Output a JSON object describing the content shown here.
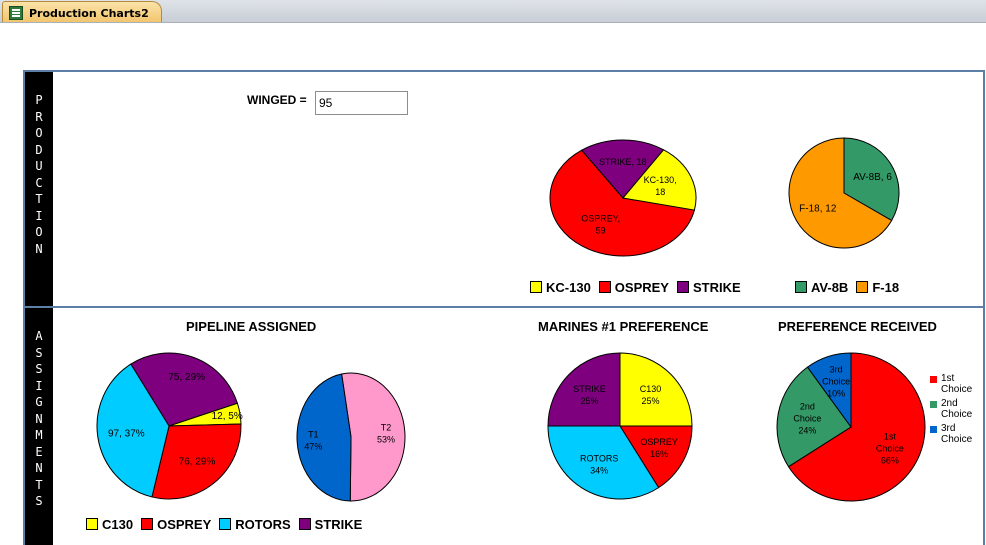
{
  "tab": {
    "title": "Production Charts2",
    "icon": "form-icon"
  },
  "production": {
    "band_label": "PRODUCTION",
    "winged_label": "WINGED =",
    "winged_value": "95"
  },
  "assignments": {
    "band_label": "ASSIGNMENTS",
    "pipeline_title": "PIPELINE ASSIGNED",
    "preference_title": "MARINES #1 PREFERENCE",
    "received_title": "PREFERENCE RECEIVED"
  },
  "legends": {
    "production_a": [
      {
        "label": "KC-130",
        "color": "#ffff00"
      },
      {
        "label": "OSPREY",
        "color": "#ff0000"
      },
      {
        "label": "STRIKE",
        "color": "#7f007f"
      }
    ],
    "production_b": [
      {
        "label": "AV-8B",
        "color": "#339966"
      },
      {
        "label": "F-18",
        "color": "#ff9900"
      }
    ],
    "pipeline": [
      {
        "label": "C130",
        "color": "#ffff00"
      },
      {
        "label": "OSPREY",
        "color": "#ff0000"
      },
      {
        "label": "ROTORS",
        "color": "#00ccff"
      },
      {
        "label": "STRIKE",
        "color": "#7f007f"
      }
    ],
    "received": [
      {
        "label": "1st Choice",
        "color": "#ff0000"
      },
      {
        "label": "2nd Choice",
        "color": "#339966"
      },
      {
        "label": "3rd Choice",
        "color": "#0066cc"
      }
    ]
  },
  "chart_data": [
    {
      "id": "production-main",
      "type": "pie",
      "start": "osprey-left",
      "slices": [
        {
          "name": "OSPREY",
          "value": 59,
          "label": [
            "OSPREY,",
            "59"
          ],
          "color": "#ff0000"
        },
        {
          "name": "STRIKE",
          "value": 18,
          "label": [
            "STRIKE, 18"
          ],
          "color": "#7f007f"
        },
        {
          "name": "KC-130",
          "value": 18,
          "label": [
            "KC-130,",
            "18"
          ],
          "color": "#ffff00"
        }
      ]
    },
    {
      "id": "production-ab",
      "type": "pie",
      "slices": [
        {
          "name": "AV-8B",
          "value": 6,
          "label": [
            "AV-8B, 6"
          ],
          "color": "#339966"
        },
        {
          "name": "F-18",
          "value": 12,
          "label": [
            "F-18, 12"
          ],
          "color": "#ff9900"
        }
      ]
    },
    {
      "id": "pipeline-assigned",
      "type": "pie",
      "slices": [
        {
          "name": "STRIKE",
          "value": 75,
          "label": [
            "75, 29%"
          ],
          "color": "#7f007f"
        },
        {
          "name": "C130",
          "value": 12,
          "label": [
            "12, 5%"
          ],
          "color": "#ffff00"
        },
        {
          "name": "OSPREY",
          "value": 76,
          "label": [
            "76, 29%"
          ],
          "color": "#ff0000"
        },
        {
          "name": "ROTORS",
          "value": 97,
          "label": [
            "97, 37%"
          ],
          "color": "#00ccff"
        }
      ]
    },
    {
      "id": "pipeline-t",
      "type": "pie",
      "slices": [
        {
          "name": "T2",
          "value": 53,
          "label": [
            "T2",
            "53%"
          ],
          "color": "#ff99cc"
        },
        {
          "name": "T1",
          "value": 47,
          "label": [
            "T1",
            "47%"
          ],
          "color": "#0066cc"
        }
      ]
    },
    {
      "id": "marines-preference",
      "type": "pie",
      "slices": [
        {
          "name": "C130",
          "value": 25,
          "label": [
            "C130",
            "25%"
          ],
          "color": "#ffff00"
        },
        {
          "name": "OSPREY",
          "value": 16,
          "label": [
            "OSPREY",
            "16%"
          ],
          "color": "#ff0000"
        },
        {
          "name": "ROTORS",
          "value": 34,
          "label": [
            "ROTORS",
            "34%"
          ],
          "color": "#00ccff"
        },
        {
          "name": "STRIKE",
          "value": 25,
          "label": [
            "STRIKE",
            "25%"
          ],
          "color": "#7f007f"
        }
      ]
    },
    {
      "id": "preference-received",
      "type": "pie",
      "slices": [
        {
          "name": "1st Choice",
          "value": 66,
          "label": [
            "1st",
            "Choice",
            "66%"
          ],
          "color": "#ff0000"
        },
        {
          "name": "2nd Choice",
          "value": 24,
          "label": [
            "2nd",
            "Choice",
            "24%"
          ],
          "color": "#339966"
        },
        {
          "name": "3rd Choice",
          "value": 10,
          "label": [
            "3rd",
            "Choice",
            "10%"
          ],
          "color": "#0066cc"
        }
      ]
    }
  ]
}
